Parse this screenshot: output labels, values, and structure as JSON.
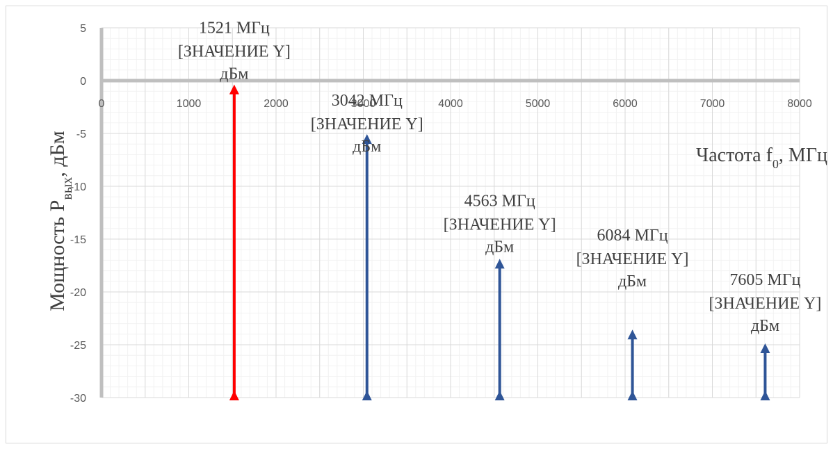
{
  "chart_data": {
    "type": "stem",
    "title": "",
    "xlabel": "Частота f",
    "xlabel_sub": "0",
    "xlabel_suffix": ", МГц",
    "ylabel": "Мощность P",
    "ylabel_sub": "вых",
    "ylabel_suffix": ", дБм",
    "xlim": [
      0,
      8000
    ],
    "ylim": [
      -30,
      5
    ],
    "x_ticks": [
      0,
      1000,
      2000,
      3000,
      4000,
      5000,
      6000,
      7000,
      8000
    ],
    "y_ticks": [
      5,
      0,
      -5,
      -10,
      -15,
      -20,
      -25,
      -30
    ],
    "x_major_step": 500,
    "y_major_step": 5,
    "minor_grid": true,
    "series": [
      {
        "points": [
          {
            "x": 1521,
            "y": -0.5,
            "label_freq": "1521 МГц",
            "label_value": "[ЗНАЧЕНИЕ Y]",
            "label_unit": "дБм",
            "color": "#ff0000"
          },
          {
            "x": 3042,
            "y": -5.2,
            "label_freq": "3042 МГц",
            "label_value": "[ЗНАЧЕНИЕ Y]",
            "label_unit": "дБм",
            "color": "#2f5597"
          },
          {
            "x": 4563,
            "y": -17.0,
            "label_freq": "4563 МГц",
            "label_value": "[ЗНАЧЕНИЕ Y]",
            "label_unit": "дБм",
            "color": "#2f5597"
          },
          {
            "x": 6084,
            "y": -23.7,
            "label_freq": "6084 МГц",
            "label_value": "[ЗНАЧЕНИЕ Y]",
            "label_unit": "дБм",
            "color": "#2f5597"
          },
          {
            "x": 7605,
            "y": -25.0,
            "label_freq": "7605 МГц",
            "label_value": "[ЗНАЧЕНИЕ Y]",
            "label_unit": "дБм",
            "color": "#2f5597"
          }
        ]
      }
    ]
  }
}
